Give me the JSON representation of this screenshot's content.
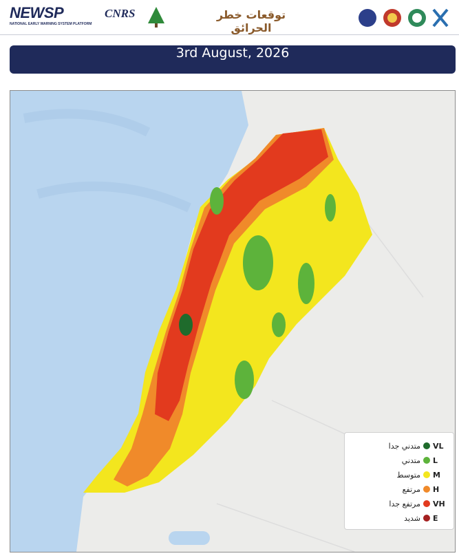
{
  "header": {
    "logo_text": "NEWSP",
    "logo_subtitle": "NATIONAL EARLY WARNING SYSTEM PLATFORM",
    "cnrs": "CNRS",
    "title": "توقعات خطر الحرائق"
  },
  "date": "3rd August, 2026",
  "legend": {
    "items": [
      {
        "code": "VL",
        "label": "متدني جدا",
        "color": "#1f6b2c"
      },
      {
        "code": "L",
        "label": "متدني",
        "color": "#5db33b"
      },
      {
        "code": "M",
        "label": "متوسط",
        "color": "#f3e61e"
      },
      {
        "code": "H",
        "label": "مرتفع",
        "color": "#f08a2a"
      },
      {
        "code": "VH",
        "label": "مرتفع جدا",
        "color": "#e23a1e"
      },
      {
        "code": "E",
        "label": "شديد",
        "color": "#a42020"
      }
    ]
  }
}
